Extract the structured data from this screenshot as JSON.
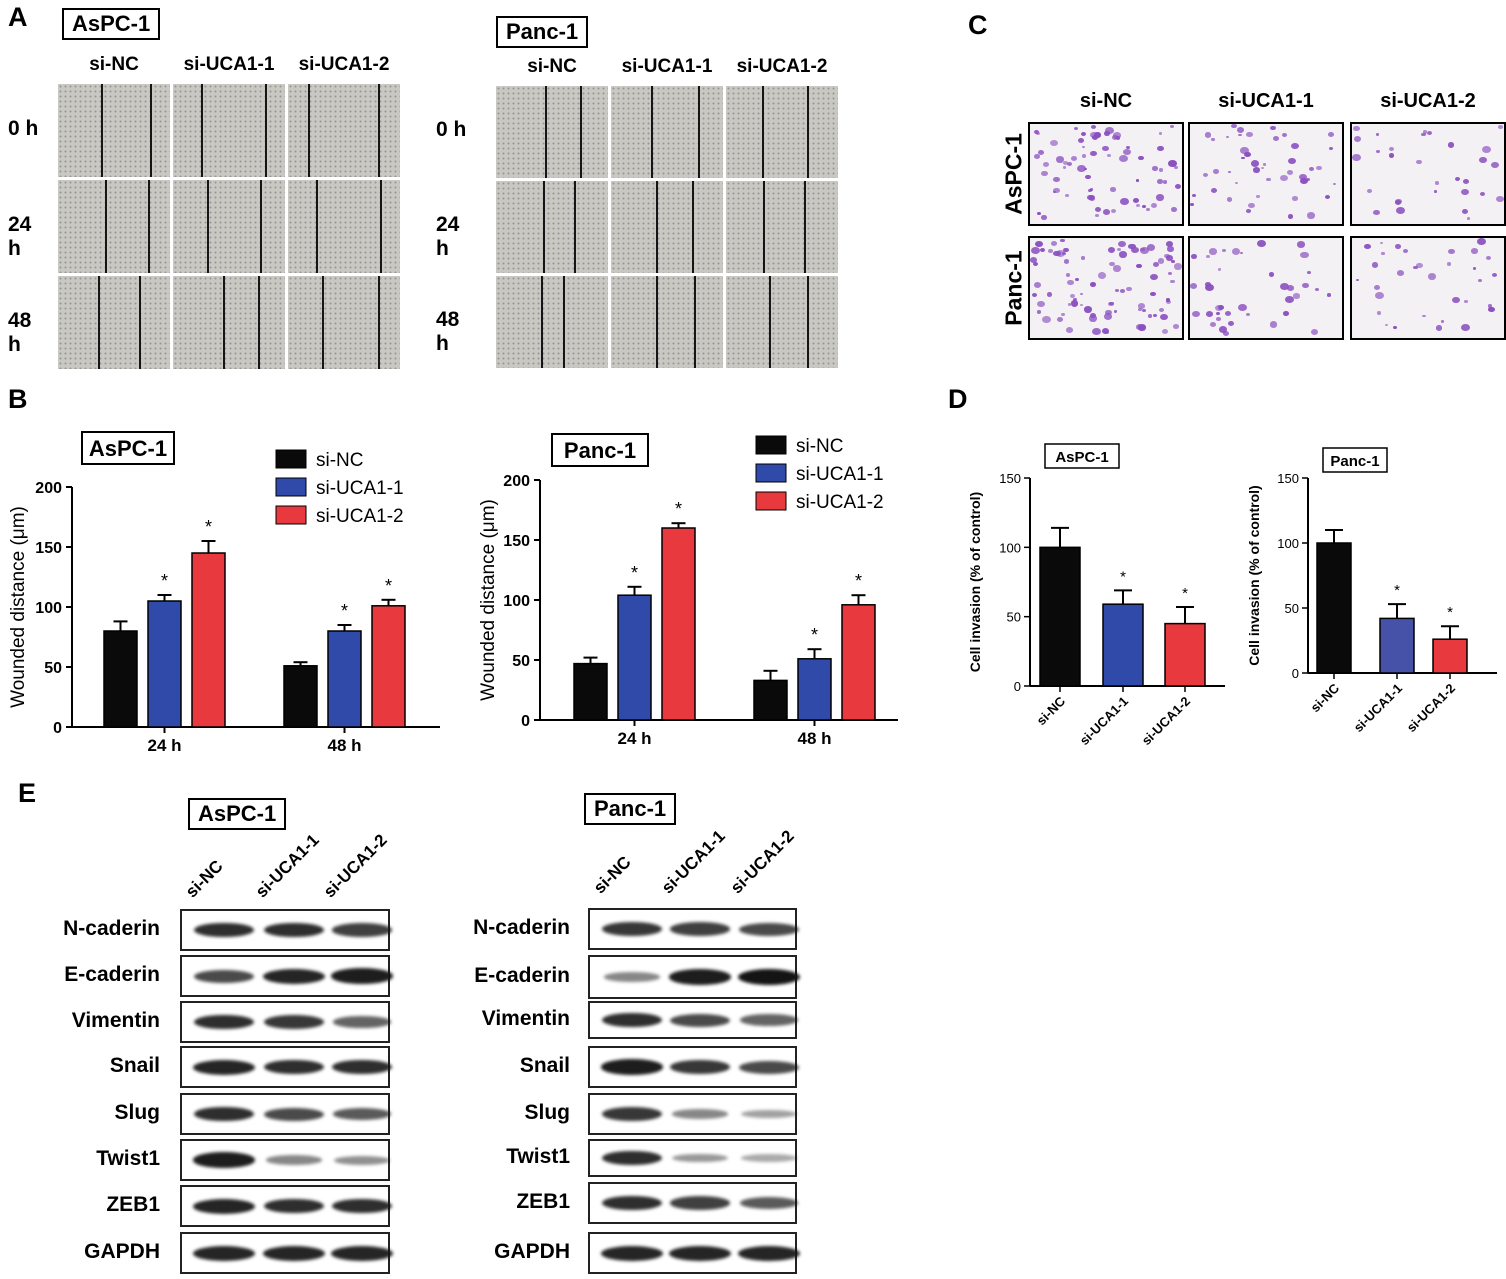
{
  "panels": {
    "A": "A",
    "B": "B",
    "C": "C",
    "D": "D",
    "E": "E"
  },
  "groups": [
    "si-NC",
    "si-UCA1-1",
    "si-UCA1-2"
  ],
  "cell_lines": {
    "aspc1": "AsPC-1",
    "panc1": "Panc-1"
  },
  "time_rows": [
    "0 h",
    "24 h",
    "48 h"
  ],
  "wb_proteins": [
    "N-caderin",
    "E-caderin",
    "Vimentin",
    "Snail",
    "Slug",
    "Twist1",
    "ZEB1",
    "GAPDH"
  ],
  "colors": {
    "si_nc": "#0a0a0a",
    "si_uca1_1": "#2f4aa8",
    "si_uca1_2": "#e8393f",
    "si_uca1_1_panc_d": "#4652a8"
  },
  "wb_intensity": {
    "aspc1": [
      [
        0.85,
        0.85,
        0.75
      ],
      [
        0.7,
        0.9,
        0.95
      ],
      [
        0.85,
        0.8,
        0.55
      ],
      [
        0.9,
        0.85,
        0.85
      ],
      [
        0.85,
        0.7,
        0.6
      ],
      [
        0.95,
        0.35,
        0.3
      ],
      [
        0.9,
        0.85,
        0.85
      ],
      [
        0.9,
        0.9,
        0.9
      ]
    ],
    "panc1": [
      [
        0.8,
        0.75,
        0.7
      ],
      [
        0.35,
        0.95,
        1.0
      ],
      [
        0.85,
        0.7,
        0.55
      ],
      [
        0.95,
        0.8,
        0.7
      ],
      [
        0.8,
        0.35,
        0.2
      ],
      [
        0.85,
        0.25,
        0.15
      ],
      [
        0.85,
        0.75,
        0.6
      ],
      [
        0.9,
        0.9,
        0.9
      ]
    ]
  },
  "chart_data": [
    {
      "type": "bar",
      "panel": "B",
      "title": "AsPC-1",
      "categories": [
        "24 h",
        "48 h"
      ],
      "ylabel": "Wounded distance (μm)",
      "ylim": [
        0,
        200
      ],
      "yticks": [
        "0",
        "50",
        "100",
        "150",
        "200"
      ],
      "legend": "top-right",
      "series": [
        {
          "name": "si-NC",
          "values": [
            80,
            51
          ],
          "errors": [
            8,
            3
          ],
          "sig": [
            "",
            ""
          ]
        },
        {
          "name": "si-UCA1-1",
          "values": [
            105,
            80
          ],
          "errors": [
            5,
            5
          ],
          "sig": [
            "*",
            "*"
          ]
        },
        {
          "name": "si-UCA1-2",
          "values": [
            145,
            101
          ],
          "errors": [
            10,
            5
          ],
          "sig": [
            "*",
            "*"
          ]
        }
      ]
    },
    {
      "type": "bar",
      "panel": "B",
      "title": "Panc-1",
      "categories": [
        "24 h",
        "48 h"
      ],
      "ylabel": "Wounded distance (μm)",
      "ylim": [
        0,
        200
      ],
      "yticks": [
        "0",
        "50",
        "100",
        "150",
        "200"
      ],
      "legend": "top-right",
      "series": [
        {
          "name": "si-NC",
          "values": [
            47,
            33
          ],
          "errors": [
            5,
            8
          ],
          "sig": [
            "",
            ""
          ]
        },
        {
          "name": "si-UCA1-1",
          "values": [
            104,
            51
          ],
          "errors": [
            7,
            8
          ],
          "sig": [
            "*",
            "*"
          ]
        },
        {
          "name": "si-UCA1-2",
          "values": [
            160,
            96
          ],
          "errors": [
            4,
            8
          ],
          "sig": [
            "*",
            "*"
          ]
        }
      ]
    },
    {
      "type": "bar",
      "panel": "D",
      "title": "AsPC-1",
      "categories": [
        "si-NC",
        "si-UCA1-1",
        "si-UCA1-2"
      ],
      "values": [
        100,
        59,
        45
      ],
      "errors": [
        14,
        10,
        12
      ],
      "sig": [
        "",
        "*",
        "*"
      ],
      "ylabel": "Cell invasion (% of control)",
      "ylim": [
        0,
        150
      ],
      "yticks": [
        "0",
        "50",
        "100",
        "150"
      ]
    },
    {
      "type": "bar",
      "panel": "D",
      "title": "Panc-1",
      "categories": [
        "si-NC",
        "si-UCA1-1",
        "si-UCA1-2"
      ],
      "values": [
        100,
        42,
        26
      ],
      "errors": [
        10,
        11,
        10
      ],
      "sig": [
        "",
        "*",
        "*"
      ],
      "ylabel": "Cell invasion (% of control)",
      "ylim": [
        0,
        150
      ],
      "yticks": [
        "0",
        "50",
        "100",
        "150"
      ]
    }
  ]
}
